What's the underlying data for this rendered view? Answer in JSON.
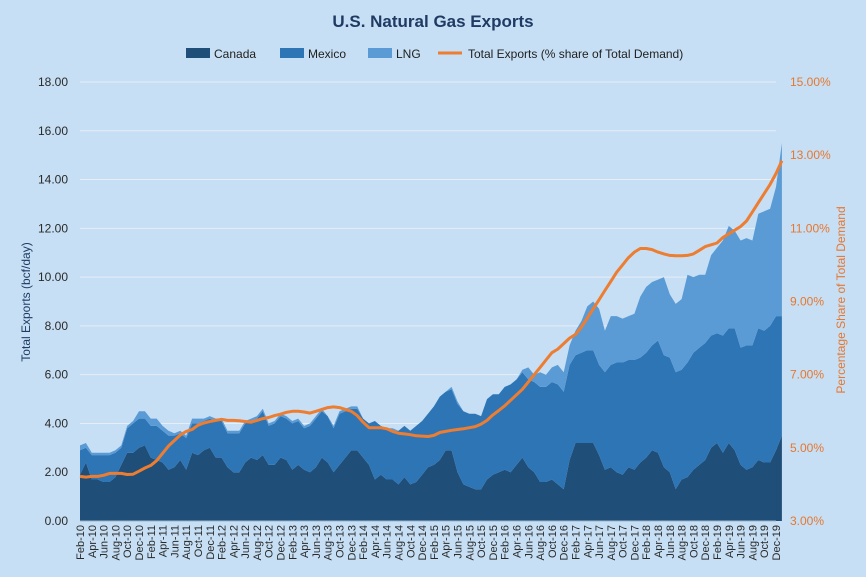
{
  "chart_data": {
    "type": "area",
    "title": "U.S. Natural Gas Exports",
    "ylabel": "Total Exports (bcf/day)",
    "y2label": "Percentage Share of Total Demand",
    "ylim": [
      0,
      18
    ],
    "y2lim": [
      3,
      15
    ],
    "yticks": [
      "0.00",
      "2.00",
      "4.00",
      "6.00",
      "8.00",
      "10.00",
      "12.00",
      "14.00",
      "16.00",
      "18.00"
    ],
    "y2ticks": [
      "3.00%",
      "5.00%",
      "7.00%",
      "9.00%",
      "11.00%",
      "13.00%",
      "15.00%"
    ],
    "x_start": "2010-02",
    "x_end": "2019-12",
    "xtick_labels": [
      "Feb-10",
      "Apr-10",
      "Jun-10",
      "Aug-10",
      "Oct-10",
      "Dec-10",
      "Feb-11",
      "Apr-11",
      "Jun-11",
      "Aug-11",
      "Oct-11",
      "Dec-11",
      "Feb-12",
      "Apr-12",
      "Jun-12",
      "Aug-12",
      "Oct-12",
      "Dec-12",
      "Feb-13",
      "Apr-13",
      "Jun-13",
      "Aug-13",
      "Oct-13",
      "Dec-13",
      "Feb-14",
      "Apr-14",
      "Jun-14",
      "Aug-14",
      "Oct-14",
      "Dec-14",
      "Feb-15",
      "Apr-15",
      "Jun-15",
      "Aug-15",
      "Oct-15",
      "Dec-15",
      "Feb-16",
      "Apr-16",
      "Jun-16",
      "Aug-16",
      "Oct-16",
      "Dec-16",
      "Feb-17",
      "Apr-17",
      "Jun-17",
      "Aug-17",
      "Oct-17",
      "Dec-17",
      "Feb-18",
      "Apr-18",
      "Jun-18",
      "Aug-18",
      "Oct-18",
      "Dec-18",
      "Feb-19",
      "Apr-19",
      "Jun-19",
      "Aug-19",
      "Oct-19",
      "Dec-19"
    ],
    "legend_position": "top",
    "grid": true,
    "series": [
      {
        "name": "Canada",
        "kind": "stacked-area",
        "color": "#1f4e79",
        "values": [
          1.9,
          2.4,
          1.7,
          1.7,
          1.6,
          1.6,
          1.8,
          2.3,
          2.8,
          2.8,
          3.0,
          3.1,
          2.6,
          2.5,
          2.4,
          2.1,
          2.2,
          2.5,
          2.1,
          2.8,
          2.7,
          2.9,
          3.0,
          2.6,
          2.6,
          2.2,
          2.0,
          2.0,
          2.4,
          2.6,
          2.5,
          2.7,
          2.3,
          2.3,
          2.6,
          2.5,
          2.1,
          2.3,
          2.1,
          2.0,
          2.2,
          2.6,
          2.4,
          2.0,
          2.3,
          2.6,
          2.9,
          2.9,
          2.6,
          2.3,
          1.7,
          1.9,
          1.7,
          1.7,
          1.5,
          1.8,
          1.5,
          1.6,
          1.9,
          2.2,
          2.3,
          2.5,
          2.9,
          2.9,
          2.0,
          1.5,
          1.4,
          1.3,
          1.3,
          1.7,
          1.9,
          2.0,
          2.1,
          2.0,
          2.3,
          2.6,
          2.2,
          2.0,
          1.6,
          1.6,
          1.7,
          1.5,
          1.3,
          2.5,
          3.2,
          3.2,
          3.2,
          3.2,
          2.7,
          2.1,
          2.2,
          2.0,
          1.9,
          2.2,
          2.1,
          2.4,
          2.6,
          2.9,
          2.8,
          2.2,
          2.0,
          1.3,
          1.7,
          1.8,
          2.1,
          2.3,
          2.5,
          3.0,
          3.2,
          2.8,
          3.2,
          2.9,
          2.3,
          2.1,
          2.2,
          2.5,
          2.4,
          2.4,
          2.9,
          3.5
        ]
      },
      {
        "name": "Mexico",
        "kind": "stacked-area",
        "color": "#2e75b6",
        "values": [
          1.0,
          0.6,
          1.0,
          1.0,
          1.1,
          1.1,
          1.0,
          0.7,
          1.0,
          1.2,
          1.2,
          1.1,
          1.3,
          1.4,
          1.3,
          1.4,
          1.3,
          1.1,
          1.3,
          1.2,
          1.3,
          1.2,
          1.2,
          1.5,
          1.5,
          1.4,
          1.6,
          1.6,
          1.6,
          1.5,
          1.7,
          1.8,
          1.6,
          1.7,
          1.7,
          1.7,
          1.9,
          1.8,
          1.7,
          1.9,
          2.0,
          1.9,
          1.9,
          1.8,
          2.1,
          1.9,
          1.7,
          1.7,
          1.6,
          1.7,
          2.4,
          2.0,
          2.1,
          2.0,
          2.2,
          2.1,
          2.2,
          2.3,
          2.2,
          2.2,
          2.4,
          2.6,
          2.4,
          2.5,
          2.8,
          3.0,
          3.0,
          3.1,
          3.0,
          3.3,
          3.3,
          3.2,
          3.4,
          3.6,
          3.5,
          3.5,
          3.6,
          3.7,
          3.9,
          3.9,
          4.0,
          4.1,
          4.0,
          3.9,
          3.6,
          3.7,
          3.8,
          3.8,
          3.7,
          4.0,
          4.2,
          4.5,
          4.6,
          4.4,
          4.5,
          4.3,
          4.3,
          4.3,
          4.6,
          4.6,
          4.7,
          4.8,
          4.5,
          4.7,
          4.8,
          4.8,
          4.8,
          4.6,
          4.5,
          4.8,
          4.7,
          5.0,
          4.8,
          5.1,
          5.0,
          5.4,
          5.4,
          5.6,
          5.5,
          4.9
        ]
      },
      {
        "name": "LNG",
        "kind": "stacked-area",
        "color": "#5b9bd5",
        "values": [
          0.2,
          0.2,
          0.1,
          0.1,
          0.1,
          0.1,
          0.1,
          0.1,
          0.1,
          0.1,
          0.3,
          0.3,
          0.3,
          0.3,
          0.2,
          0.2,
          0.1,
          0.1,
          0.1,
          0.2,
          0.2,
          0.1,
          0.1,
          0.1,
          0.1,
          0.1,
          0.1,
          0.1,
          0.1,
          0.1,
          0.1,
          0.1,
          0.1,
          0.1,
          0.1,
          0.1,
          0.1,
          0.1,
          0.1,
          0.1,
          0.1,
          0.1,
          0.0,
          0.1,
          0.1,
          0.1,
          0.1,
          0.1,
          0.0,
          0.0,
          0.0,
          0.0,
          0.0,
          0.1,
          0.0,
          0.0,
          0.0,
          0.0,
          0.0,
          0.0,
          0.0,
          0.0,
          0.0,
          0.1,
          0.1,
          0.0,
          0.0,
          0.0,
          0.0,
          0.0,
          0.0,
          0.0,
          0.0,
          0.0,
          0.0,
          0.1,
          0.5,
          0.3,
          0.6,
          0.5,
          0.6,
          0.8,
          0.8,
          0.8,
          1.0,
          1.3,
          1.8,
          2.0,
          2.3,
          1.7,
          2.0,
          1.9,
          1.8,
          1.8,
          1.9,
          2.5,
          2.7,
          2.6,
          2.5,
          3.2,
          2.6,
          2.8,
          2.9,
          3.6,
          3.1,
          3.0,
          2.8,
          3.3,
          3.5,
          3.9,
          4.2,
          4.0,
          4.4,
          4.4,
          4.3,
          4.7,
          4.9,
          4.8,
          5.3,
          7.1
        ]
      },
      {
        "name": "Total Exports (% share of Total Demand)",
        "kind": "line",
        "axis": "right",
        "color": "#ed7d31",
        "values": [
          4.22,
          4.2,
          4.22,
          4.22,
          4.25,
          4.3,
          4.3,
          4.3,
          4.27,
          4.28,
          4.36,
          4.45,
          4.52,
          4.65,
          4.85,
          5.05,
          5.2,
          5.35,
          5.45,
          5.5,
          5.62,
          5.68,
          5.72,
          5.75,
          5.78,
          5.75,
          5.75,
          5.74,
          5.72,
          5.7,
          5.75,
          5.8,
          5.83,
          5.88,
          5.92,
          5.97,
          6.0,
          6.0,
          5.98,
          5.95,
          6.0,
          6.05,
          6.1,
          6.12,
          6.1,
          6.05,
          6.0,
          5.88,
          5.7,
          5.55,
          5.55,
          5.55,
          5.52,
          5.45,
          5.4,
          5.38,
          5.36,
          5.33,
          5.32,
          5.31,
          5.34,
          5.42,
          5.45,
          5.48,
          5.5,
          5.52,
          5.55,
          5.58,
          5.65,
          5.75,
          5.9,
          6.02,
          6.15,
          6.3,
          6.45,
          6.6,
          6.8,
          7.0,
          7.2,
          7.4,
          7.6,
          7.7,
          7.85,
          8.0,
          8.1,
          8.3,
          8.55,
          8.8,
          9.05,
          9.3,
          9.55,
          9.8,
          10.0,
          10.2,
          10.35,
          10.45,
          10.45,
          10.42,
          10.35,
          10.3,
          10.26,
          10.25,
          10.25,
          10.26,
          10.3,
          10.4,
          10.5,
          10.55,
          10.6,
          10.75,
          10.85,
          10.95,
          11.05,
          11.2,
          11.45,
          11.7,
          11.95,
          12.2,
          12.5,
          12.85
        ]
      }
    ]
  }
}
